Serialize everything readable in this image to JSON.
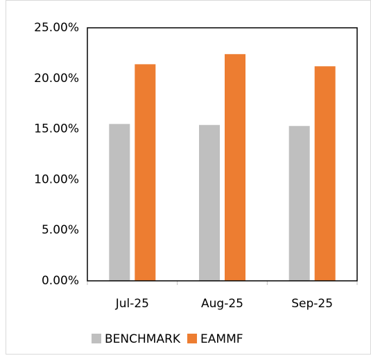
{
  "chart_data": {
    "type": "bar",
    "categories": [
      "Jul-25",
      "Aug-25",
      "Sep-25"
    ],
    "series": [
      {
        "name": "BENCHMARK",
        "color": "#bfbfbf",
        "values": [
          15.5,
          15.4,
          15.3
        ]
      },
      {
        "name": "EAMMF",
        "color": "#ed7d31",
        "values": [
          21.4,
          22.4,
          21.2
        ]
      }
    ],
    "ylim": [
      0,
      25
    ],
    "yticks": [
      {
        "value": 0,
        "label": "0.00%"
      },
      {
        "value": 5,
        "label": "5.00%"
      },
      {
        "value": 10,
        "label": "10.00%"
      },
      {
        "value": 15,
        "label": "15.00%"
      },
      {
        "value": 20,
        "label": "20.00%"
      },
      {
        "value": 25,
        "label": "25.00%"
      }
    ],
    "grid": false,
    "legend": "bottom"
  }
}
